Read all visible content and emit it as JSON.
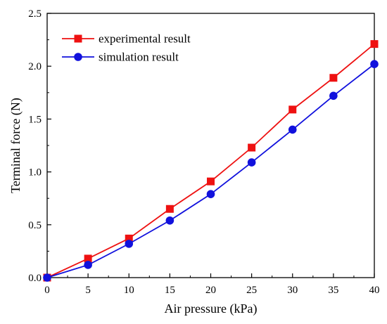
{
  "chart_data": {
    "type": "line",
    "title": "",
    "xlabel": "Air pressure (kPa)",
    "ylabel": "Terminal force (N)",
    "xlim": [
      0,
      40
    ],
    "ylim": [
      0,
      2.5
    ],
    "xticks": [
      0,
      5,
      10,
      15,
      20,
      25,
      30,
      35,
      40
    ],
    "yticks": [
      0.0,
      0.5,
      1.0,
      1.5,
      2.0,
      2.5
    ],
    "xtick_labels": [
      "0",
      "5",
      "10",
      "15",
      "20",
      "25",
      "30",
      "35",
      "40"
    ],
    "ytick_labels": [
      "0.0",
      "0.5",
      "1.0",
      "1.5",
      "2.0",
      "2.5"
    ],
    "grid": false,
    "legend_position": "top-left",
    "x": [
      0,
      5,
      10,
      15,
      20,
      25,
      30,
      35,
      40
    ],
    "series": [
      {
        "name": "experimental result",
        "marker": "square",
        "color": "#ee1111",
        "values": [
          0.0,
          0.18,
          0.37,
          0.65,
          0.91,
          1.23,
          1.59,
          1.89,
          2.21
        ]
      },
      {
        "name": "simulation result",
        "marker": "circle",
        "color": "#1111dd",
        "values": [
          0.0,
          0.12,
          0.32,
          0.54,
          0.79,
          1.09,
          1.4,
          1.72,
          2.02
        ]
      }
    ]
  }
}
